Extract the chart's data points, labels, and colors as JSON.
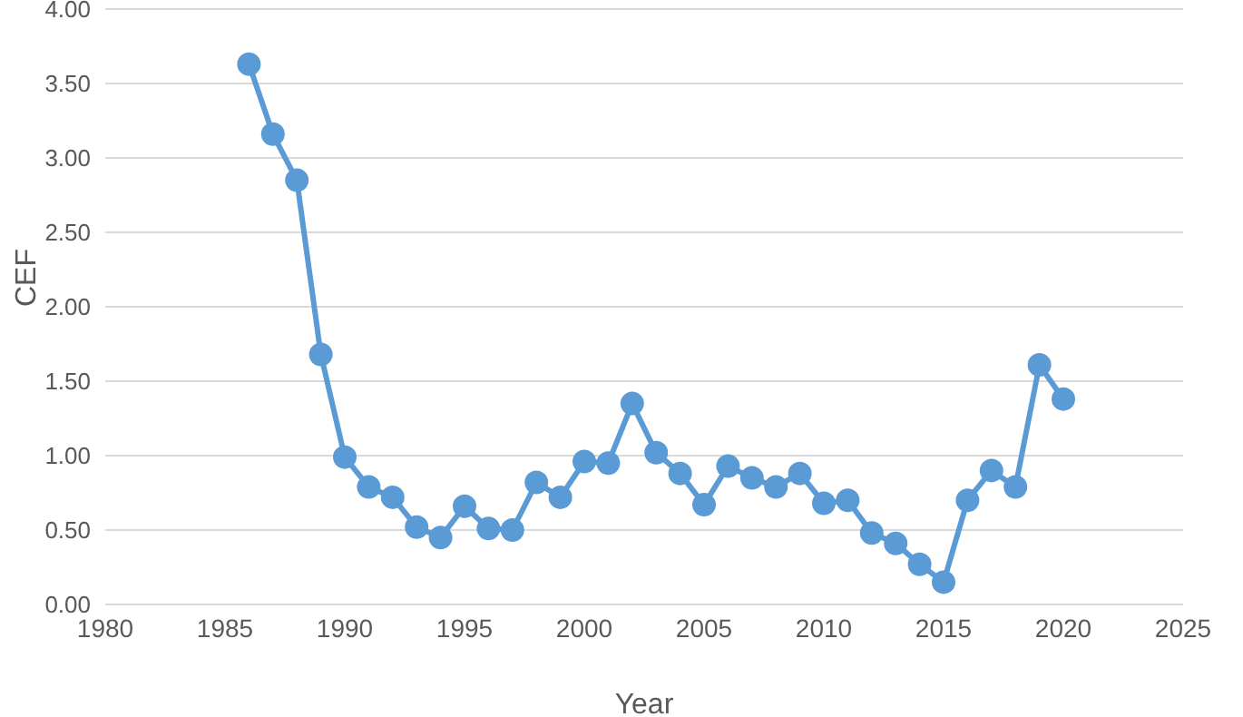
{
  "chart_data": {
    "type": "line",
    "xlabel": "Year",
    "ylabel": "CEF",
    "x": [
      1986,
      1987,
      1988,
      1989,
      1990,
      1991,
      1992,
      1993,
      1994,
      1995,
      1996,
      1997,
      1998,
      1999,
      2000,
      2001,
      2002,
      2003,
      2004,
      2005,
      2006,
      2007,
      2008,
      2009,
      2010,
      2011,
      2012,
      2013,
      2014,
      2015,
      2016,
      2017,
      2018,
      2019,
      2020
    ],
    "series": [
      {
        "color": "#5b9bd5",
        "values": [
          3.63,
          3.16,
          2.85,
          1.68,
          0.99,
          0.79,
          0.72,
          0.52,
          0.45,
          0.66,
          0.51,
          0.5,
          0.82,
          0.72,
          0.96,
          0.95,
          1.35,
          1.02,
          0.88,
          0.67,
          0.93,
          0.85,
          0.79,
          0.88,
          0.68,
          0.7,
          0.48,
          0.41,
          0.27,
          0.15,
          0.7,
          0.9,
          0.79,
          1.61,
          1.38
        ]
      }
    ],
    "xlim": [
      1980,
      2025
    ],
    "xticks": [
      1980,
      1985,
      1990,
      1995,
      2000,
      2005,
      2010,
      2015,
      2020,
      2025
    ],
    "ylim": [
      0,
      4
    ],
    "yticks": [
      {
        "value": 0,
        "label": "0.00"
      },
      {
        "value": 0.5,
        "label": "0.50"
      },
      {
        "value": 1,
        "label": "1.00"
      },
      {
        "value": 1.5,
        "label": "1.50"
      },
      {
        "value": 2,
        "label": "2.00"
      },
      {
        "value": 2.5,
        "label": "2.50"
      },
      {
        "value": 3,
        "label": "3.00"
      },
      {
        "value": 3.5,
        "label": "3.50"
      },
      {
        "value": 4,
        "label": "4.00"
      }
    ],
    "grid": "y",
    "legend": false,
    "marker": "circle",
    "line_style": "solid"
  }
}
